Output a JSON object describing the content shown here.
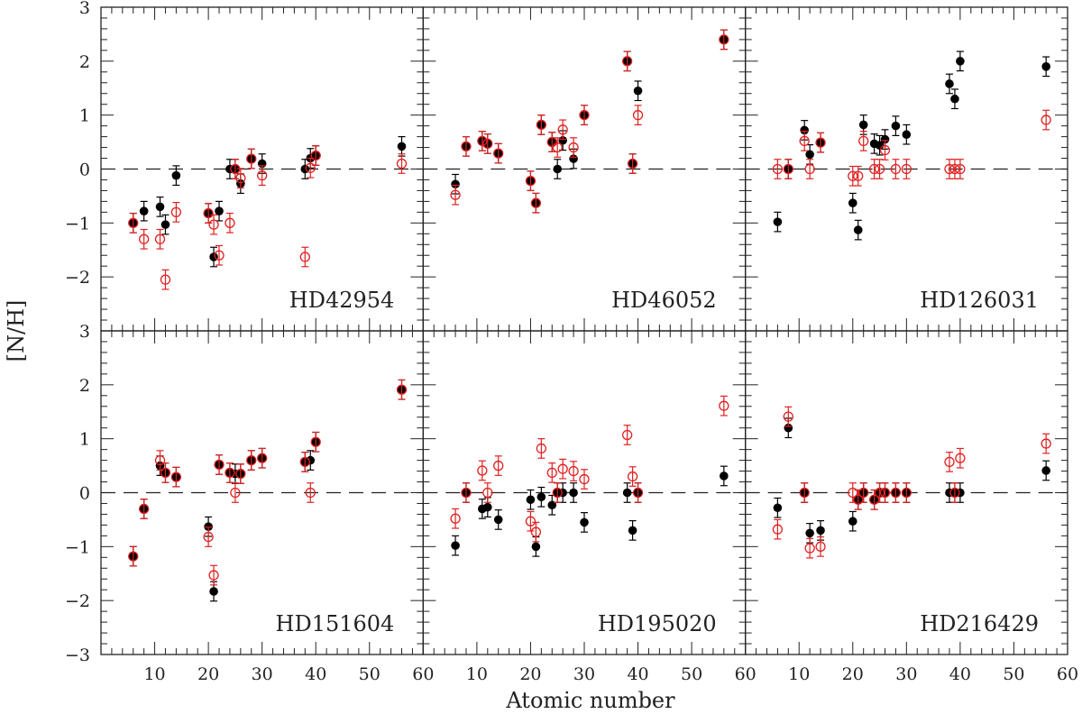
{
  "chart_data": {
    "type": "scatter",
    "xlabel": "Atomic number",
    "ylabel": "[N/H]",
    "xlim": [
      0,
      60
    ],
    "ylim": [
      -3,
      3
    ],
    "x_ticks": [
      10,
      20,
      30,
      40,
      50,
      60
    ],
    "y_ticks": [
      -3,
      -2,
      -1,
      0,
      1,
      2,
      3
    ],
    "grid": "panels 3x2, dashed reference line at [N/H]=0",
    "series_styles": {
      "filled": {
        "marker": "filled circle",
        "color": "#000000"
      },
      "open": {
        "marker": "open circle",
        "color": "#e02020"
      }
    },
    "colors": {
      "filled": "#000000",
      "open": "#e02020",
      "errorbar_filled": "#000000",
      "errorbar_open": "#e02020"
    },
    "panels": [
      {
        "label": "HD42954",
        "filled": [
          [
            6,
            -1.0,
            0.18
          ],
          [
            8,
            -0.78,
            0.18
          ],
          [
            11,
            -0.7,
            0.18
          ],
          [
            12,
            -1.03,
            0.18
          ],
          [
            14,
            -0.12,
            0.18
          ],
          [
            20,
            -0.82,
            0.18
          ],
          [
            21,
            -1.63,
            0.18
          ],
          [
            22,
            -0.78,
            0.18
          ],
          [
            24,
            0.0,
            0.18
          ],
          [
            25,
            0.0,
            0.18
          ],
          [
            26,
            -0.27,
            0.18
          ],
          [
            28,
            0.19,
            0.18
          ],
          [
            30,
            0.1,
            0.18
          ],
          [
            38,
            0.0,
            0.18
          ],
          [
            39,
            0.2,
            0.18
          ],
          [
            40,
            0.25,
            0.18
          ],
          [
            56,
            0.42,
            0.18
          ]
        ],
        "open": [
          [
            6,
            -1.0,
            0.18
          ],
          [
            8,
            -1.3,
            0.18
          ],
          [
            11,
            -1.3,
            0.18
          ],
          [
            12,
            -2.05,
            0.18
          ],
          [
            14,
            -0.8,
            0.18
          ],
          [
            20,
            -0.82,
            0.18
          ],
          [
            21,
            -1.03,
            0.18
          ],
          [
            22,
            -1.6,
            0.18
          ],
          [
            24,
            -1.0,
            0.18
          ],
          [
            25,
            0.0,
            0.18
          ],
          [
            26,
            -0.17,
            0.18
          ],
          [
            28,
            0.19,
            0.18
          ],
          [
            30,
            -0.12,
            0.18
          ],
          [
            38,
            -1.63,
            0.18
          ],
          [
            39,
            0.02,
            0.18
          ],
          [
            40,
            0.25,
            0.18
          ],
          [
            56,
            0.1,
            0.18
          ]
        ]
      },
      {
        "label": "HD46052",
        "filled": [
          [
            6,
            -0.28,
            0.18
          ],
          [
            8,
            0.42,
            0.18
          ],
          [
            11,
            0.52,
            0.18
          ],
          [
            12,
            0.47,
            0.18
          ],
          [
            14,
            0.29,
            0.18
          ],
          [
            20,
            -0.22,
            0.18
          ],
          [
            21,
            -0.63,
            0.18
          ],
          [
            22,
            0.82,
            0.18
          ],
          [
            24,
            0.5,
            0.18
          ],
          [
            25,
            0.0,
            0.18
          ],
          [
            26,
            0.53,
            0.18
          ],
          [
            28,
            0.19,
            0.18
          ],
          [
            30,
            1.0,
            0.18
          ],
          [
            38,
            2.0,
            0.18
          ],
          [
            39,
            0.1,
            0.18
          ],
          [
            40,
            1.45,
            0.18
          ],
          [
            56,
            2.4,
            0.18
          ]
        ],
        "open": [
          [
            6,
            -0.48,
            0.18
          ],
          [
            8,
            0.42,
            0.18
          ],
          [
            11,
            0.52,
            0.18
          ],
          [
            12,
            0.47,
            0.18
          ],
          [
            14,
            0.29,
            0.18
          ],
          [
            20,
            -0.22,
            0.18
          ],
          [
            21,
            -0.63,
            0.18
          ],
          [
            22,
            0.82,
            0.18
          ],
          [
            24,
            0.5,
            0.18
          ],
          [
            25,
            0.4,
            0.18
          ],
          [
            26,
            0.73,
            0.18
          ],
          [
            28,
            0.4,
            0.18
          ],
          [
            30,
            1.0,
            0.18
          ],
          [
            38,
            2.0,
            0.18
          ],
          [
            39,
            0.1,
            0.18
          ],
          [
            40,
            1.0,
            0.18
          ],
          [
            56,
            2.4,
            0.18
          ]
        ]
      },
      {
        "label": "HD126031",
        "filled": [
          [
            6,
            -0.98,
            0.18
          ],
          [
            8,
            0.0,
            0.18
          ],
          [
            11,
            0.72,
            0.18
          ],
          [
            12,
            0.27,
            0.18
          ],
          [
            14,
            0.49,
            0.18
          ],
          [
            20,
            -0.63,
            0.18
          ],
          [
            21,
            -1.13,
            0.18
          ],
          [
            22,
            0.82,
            0.18
          ],
          [
            24,
            0.47,
            0.18
          ],
          [
            25,
            0.44,
            0.18
          ],
          [
            26,
            0.55,
            0.18
          ],
          [
            28,
            0.8,
            0.18
          ],
          [
            30,
            0.64,
            0.18
          ],
          [
            38,
            1.58,
            0.18
          ],
          [
            39,
            1.3,
            0.18
          ],
          [
            40,
            2.0,
            0.18
          ],
          [
            56,
            1.9,
            0.18
          ]
        ],
        "open": [
          [
            6,
            0.0,
            0.18
          ],
          [
            8,
            0.0,
            0.18
          ],
          [
            11,
            0.52,
            0.18
          ],
          [
            12,
            0.0,
            0.18
          ],
          [
            14,
            0.49,
            0.18
          ],
          [
            20,
            -0.13,
            0.18
          ],
          [
            21,
            -0.13,
            0.18
          ],
          [
            22,
            0.52,
            0.18
          ],
          [
            24,
            0.0,
            0.18
          ],
          [
            25,
            0.0,
            0.18
          ],
          [
            26,
            0.35,
            0.18
          ],
          [
            28,
            0.0,
            0.18
          ],
          [
            30,
            0.0,
            0.18
          ],
          [
            38,
            0.0,
            0.18
          ],
          [
            39,
            0.0,
            0.18
          ],
          [
            40,
            0.0,
            0.18
          ],
          [
            56,
            0.91,
            0.18
          ]
        ]
      },
      {
        "label": "HD151604",
        "filled": [
          [
            6,
            -1.18,
            0.18
          ],
          [
            8,
            -0.3,
            0.18
          ],
          [
            11,
            0.5,
            0.18
          ],
          [
            12,
            0.37,
            0.18
          ],
          [
            14,
            0.29,
            0.18
          ],
          [
            20,
            -0.63,
            0.18
          ],
          [
            21,
            -1.83,
            0.18
          ],
          [
            22,
            0.52,
            0.18
          ],
          [
            24,
            0.37,
            0.18
          ],
          [
            25,
            0.35,
            0.18
          ],
          [
            26,
            0.35,
            0.18
          ],
          [
            28,
            0.6,
            0.18
          ],
          [
            30,
            0.64,
            0.18
          ],
          [
            38,
            0.57,
            0.18
          ],
          [
            39,
            0.6,
            0.18
          ],
          [
            40,
            0.94,
            0.18
          ],
          [
            56,
            1.91,
            0.18
          ]
        ],
        "open": [
          [
            6,
            -1.18,
            0.18
          ],
          [
            8,
            -0.3,
            0.18
          ],
          [
            11,
            0.6,
            0.18
          ],
          [
            12,
            0.37,
            0.18
          ],
          [
            14,
            0.29,
            0.18
          ],
          [
            20,
            -0.82,
            0.18
          ],
          [
            21,
            -1.53,
            0.18
          ],
          [
            22,
            0.52,
            0.18
          ],
          [
            24,
            0.37,
            0.18
          ],
          [
            25,
            0.0,
            0.18
          ],
          [
            26,
            0.35,
            0.18
          ],
          [
            28,
            0.6,
            0.18
          ],
          [
            30,
            0.64,
            0.18
          ],
          [
            38,
            0.57,
            0.18
          ],
          [
            39,
            0.0,
            0.18
          ],
          [
            40,
            0.94,
            0.18
          ],
          [
            56,
            1.91,
            0.18
          ]
        ]
      },
      {
        "label": "HD195020",
        "filled": [
          [
            6,
            -0.98,
            0.18
          ],
          [
            8,
            0.0,
            0.18
          ],
          [
            11,
            -0.3,
            0.18
          ],
          [
            12,
            -0.27,
            0.18
          ],
          [
            14,
            -0.5,
            0.18
          ],
          [
            20,
            -0.13,
            0.18
          ],
          [
            21,
            -1.0,
            0.18
          ],
          [
            22,
            -0.08,
            0.18
          ],
          [
            24,
            -0.23,
            0.18
          ],
          [
            25,
            0.0,
            0.18
          ],
          [
            26,
            0.0,
            0.18
          ],
          [
            28,
            0.0,
            0.18
          ],
          [
            30,
            -0.55,
            0.18
          ],
          [
            38,
            0.0,
            0.18
          ],
          [
            39,
            -0.7,
            0.18
          ],
          [
            40,
            0.0,
            0.18
          ],
          [
            56,
            0.31,
            0.18
          ]
        ],
        "open": [
          [
            6,
            -0.48,
            0.18
          ],
          [
            8,
            0.0,
            0.18
          ],
          [
            11,
            0.41,
            0.18
          ],
          [
            12,
            0.0,
            0.18
          ],
          [
            14,
            0.5,
            0.18
          ],
          [
            20,
            -0.53,
            0.18
          ],
          [
            21,
            -0.73,
            0.18
          ],
          [
            22,
            0.82,
            0.18
          ],
          [
            24,
            0.37,
            0.18
          ],
          [
            25,
            0.0,
            0.18
          ],
          [
            26,
            0.44,
            0.18
          ],
          [
            28,
            0.4,
            0.18
          ],
          [
            30,
            0.25,
            0.18
          ],
          [
            38,
            1.07,
            0.18
          ],
          [
            39,
            0.3,
            0.18
          ],
          [
            40,
            0.0,
            0.18
          ],
          [
            56,
            1.61,
            0.18
          ]
        ]
      },
      {
        "label": "HD216429",
        "filled": [
          [
            6,
            -0.28,
            0.18
          ],
          [
            8,
            1.2,
            0.18
          ],
          [
            11,
            0.0,
            0.18
          ],
          [
            12,
            -0.75,
            0.18
          ],
          [
            14,
            -0.7,
            0.18
          ],
          [
            20,
            -0.53,
            0.18
          ],
          [
            21,
            -0.13,
            0.18
          ],
          [
            22,
            0.0,
            0.18
          ],
          [
            24,
            -0.13,
            0.18
          ],
          [
            25,
            0.0,
            0.18
          ],
          [
            26,
            0.0,
            0.18
          ],
          [
            28,
            0.0,
            0.18
          ],
          [
            30,
            0.0,
            0.18
          ],
          [
            38,
            0.0,
            0.18
          ],
          [
            39,
            0.0,
            0.18
          ],
          [
            40,
            0.0,
            0.18
          ],
          [
            56,
            0.41,
            0.18
          ]
        ],
        "open": [
          [
            6,
            -0.68,
            0.18
          ],
          [
            8,
            1.41,
            0.18
          ],
          [
            11,
            0.0,
            0.18
          ],
          [
            12,
            -1.03,
            0.18
          ],
          [
            14,
            -1.0,
            0.18
          ],
          [
            20,
            0.0,
            0.18
          ],
          [
            21,
            -0.13,
            0.18
          ],
          [
            22,
            0.0,
            0.18
          ],
          [
            24,
            -0.13,
            0.18
          ],
          [
            25,
            0.0,
            0.18
          ],
          [
            26,
            0.0,
            0.18
          ],
          [
            28,
            0.0,
            0.18
          ],
          [
            30,
            0.0,
            0.18
          ],
          [
            38,
            0.57,
            0.18
          ],
          [
            39,
            0.0,
            0.18
          ],
          [
            40,
            0.64,
            0.18
          ],
          [
            56,
            0.91,
            0.18
          ]
        ]
      }
    ]
  }
}
